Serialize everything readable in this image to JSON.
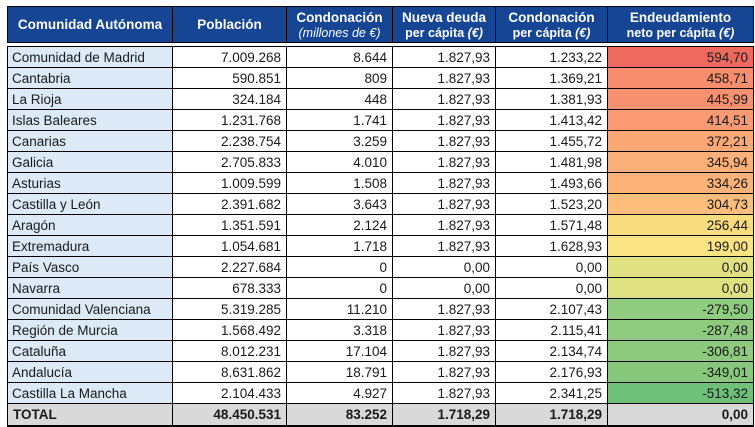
{
  "colors": {
    "header_bg": "#164593",
    "header_text": "#ffffff",
    "name_column_bg": "#dce9f7",
    "cell_bg": "#ffffff",
    "total_row_bg": "#d9d9d9",
    "border": "#000000",
    "text": "#1a1a1a"
  },
  "header": {
    "columns": [
      {
        "line1": "Comunidad Autónoma",
        "line2": "",
        "line2_italic": ""
      },
      {
        "line1": "Población",
        "line2": "",
        "line2_italic": ""
      },
      {
        "line1": "Condonación",
        "line2": "",
        "line2_italic": "(millones de €)"
      },
      {
        "line1": "Nueva deuda",
        "line2": "per cápita ",
        "line2_italic": "(€)"
      },
      {
        "line1": "Condonación",
        "line2": "per cápita ",
        "line2_italic": "(€)"
      },
      {
        "line1": "Endeudamiento",
        "line2": "neto per cápita ",
        "line2_italic": "(€)"
      }
    ]
  },
  "rows": [
    {
      "name": "Comunidad de Madrid",
      "poblacion": "7.009.268",
      "condonacion": "8.644",
      "nueva": "1.827,93",
      "cond_pc": "1.233,22",
      "endeud": "594,70",
      "color": "#ee6a5f"
    },
    {
      "name": "Cantabria",
      "poblacion": "590.851",
      "condonacion": "809",
      "nueva": "1.827,93",
      "cond_pc": "1.369,21",
      "endeud": "458,71",
      "color": "#f78e6e"
    },
    {
      "name": "La Rioja",
      "poblacion": "324.184",
      "condonacion": "448",
      "nueva": "1.827,93",
      "cond_pc": "1.381,93",
      "endeud": "445,99",
      "color": "#f8916f"
    },
    {
      "name": "Islas Baleares",
      "poblacion": "1.231.768",
      "condonacion": "1.741",
      "nueva": "1.827,93",
      "cond_pc": "1.413,42",
      "endeud": "414,51",
      "color": "#f99a72"
    },
    {
      "name": "Canarias",
      "poblacion": "2.238.754",
      "condonacion": "3.259",
      "nueva": "1.827,93",
      "cond_pc": "1.455,72",
      "endeud": "372,21",
      "color": "#faa876"
    },
    {
      "name": "Galicia",
      "poblacion": "2.705.833",
      "condonacion": "4.010",
      "nueva": "1.827,93",
      "cond_pc": "1.481,98",
      "endeud": "345,94",
      "color": "#fbaf79"
    },
    {
      "name": "Asturias",
      "poblacion": "1.009.599",
      "condonacion": "1.508",
      "nueva": "1.827,93",
      "cond_pc": "1.493,66",
      "endeud": "334,26",
      "color": "#fbb37a"
    },
    {
      "name": "Castilla y León",
      "poblacion": "2.391.682",
      "condonacion": "3.643",
      "nueva": "1.827,93",
      "cond_pc": "1.523,20",
      "endeud": "304,73",
      "color": "#fcbd7d"
    },
    {
      "name": "Aragón",
      "poblacion": "1.351.591",
      "condonacion": "2.124",
      "nueva": "1.827,93",
      "cond_pc": "1.571,48",
      "endeud": "256,44",
      "color": "#f9dc80"
    },
    {
      "name": "Extremadura",
      "poblacion": "1.054.681",
      "condonacion": "1.718",
      "nueva": "1.827,93",
      "cond_pc": "1.628,93",
      "endeud": "199,00",
      "color": "#fae383"
    },
    {
      "name": "País Vasco",
      "poblacion": "2.227.684",
      "condonacion": "0",
      "nueva": "0,00",
      "cond_pc": "0,00",
      "endeud": "0,00",
      "color": "#dfe183"
    },
    {
      "name": "Navarra",
      "poblacion": "678.333",
      "condonacion": "0",
      "nueva": "0,00",
      "cond_pc": "0,00",
      "endeud": "0,00",
      "color": "#dfe183"
    },
    {
      "name": "Comunidad Valenciana",
      "poblacion": "5.319.285",
      "condonacion": "11.210",
      "nueva": "1.827,93",
      "cond_pc": "2.107,43",
      "endeud": "-279,50",
      "color": "#90cc7f"
    },
    {
      "name": "Región de Murcia",
      "poblacion": "1.568.492",
      "condonacion": "3.318",
      "nueva": "1.827,93",
      "cond_pc": "2.115,41",
      "endeud": "-287,48",
      "color": "#8fcb7f"
    },
    {
      "name": "Cataluña",
      "poblacion": "8.012.231",
      "condonacion": "17.104",
      "nueva": "1.827,93",
      "cond_pc": "2.134,74",
      "endeud": "-306,81",
      "color": "#8dca7e"
    },
    {
      "name": "Andalucía",
      "poblacion": "8.631.862",
      "condonacion": "18.791",
      "nueva": "1.827,93",
      "cond_pc": "2.176,93",
      "endeud": "-349,01",
      "color": "#87c87d"
    },
    {
      "name": "Castilla La Mancha",
      "poblacion": "2.104.433",
      "condonacion": "4.927",
      "nueva": "1.827,93",
      "cond_pc": "2.341,25",
      "endeud": "-513,32",
      "color": "#6fc17a"
    }
  ],
  "total_row": {
    "name": "TOTAL",
    "poblacion": "48.450.531",
    "condonacion": "83.252",
    "nueva": "1.718,29",
    "cond_pc": "1.718,29",
    "endeud": "0,00"
  },
  "chart_data": {
    "type": "table",
    "title": "Condonación de deuda por Comunidad Autónoma",
    "columns": [
      "Comunidad Autónoma",
      "Población",
      "Condonación (millones de €)",
      "Nueva deuda per cápita (€)",
      "Condonación per cápita (€)",
      "Endeudamiento neto per cápita (€)"
    ],
    "rows": [
      [
        "Comunidad de Madrid",
        7009268,
        8644,
        1827.93,
        1233.22,
        594.7
      ],
      [
        "Cantabria",
        590851,
        809,
        1827.93,
        1369.21,
        458.71
      ],
      [
        "La Rioja",
        324184,
        448,
        1827.93,
        1381.93,
        445.99
      ],
      [
        "Islas Baleares",
        1231768,
        1741,
        1827.93,
        1413.42,
        414.51
      ],
      [
        "Canarias",
        2238754,
        3259,
        1827.93,
        1455.72,
        372.21
      ],
      [
        "Galicia",
        2705833,
        4010,
        1827.93,
        1481.98,
        345.94
      ],
      [
        "Asturias",
        1009599,
        1508,
        1827.93,
        1493.66,
        334.26
      ],
      [
        "Castilla y León",
        2391682,
        3643,
        1827.93,
        1523.2,
        304.73
      ],
      [
        "Aragón",
        1351591,
        2124,
        1827.93,
        1571.48,
        256.44
      ],
      [
        "Extremadura",
        1054681,
        1718,
        1827.93,
        1628.93,
        199.0
      ],
      [
        "País Vasco",
        2227684,
        0,
        0.0,
        0.0,
        0.0
      ],
      [
        "Navarra",
        678333,
        0,
        0.0,
        0.0,
        0.0
      ],
      [
        "Comunidad Valenciana",
        5319285,
        11210,
        1827.93,
        2107.43,
        -279.5
      ],
      [
        "Región de Murcia",
        1568492,
        3318,
        1827.93,
        2115.41,
        -287.48
      ],
      [
        "Cataluña",
        8012231,
        17104,
        1827.93,
        2134.74,
        -306.81
      ],
      [
        "Andalucía",
        8631862,
        18791,
        1827.93,
        2176.93,
        -349.01
      ],
      [
        "Castilla La Mancha",
        2104433,
        4927,
        1827.93,
        2341.25,
        -513.32
      ]
    ],
    "total": [
      "TOTAL",
      48450531,
      83252,
      1718.29,
      1718.29,
      0.0
    ],
    "layout_hints": {
      "conditional_format": "red-yellow-green color scale applied to last column (high=red, median=yellow, low=green)",
      "grid": "black cell borders",
      "total_row_style": "gray bold"
    }
  }
}
